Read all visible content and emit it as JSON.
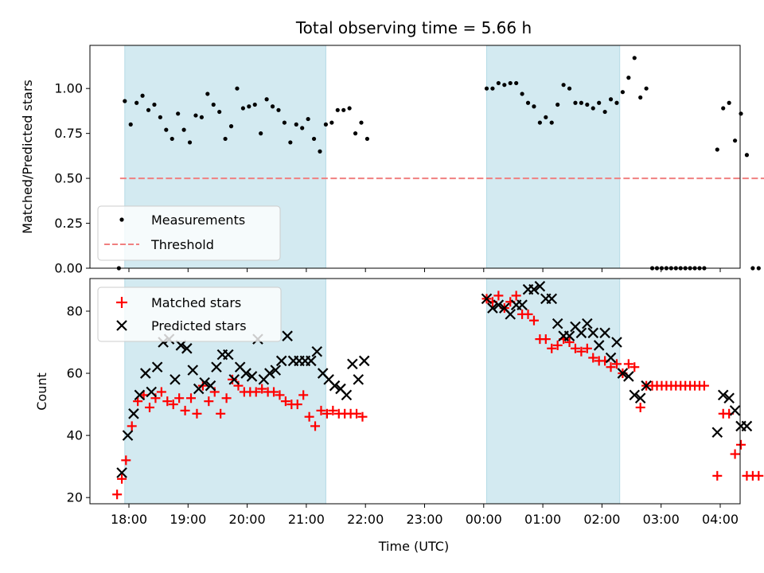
{
  "chart_data": [
    {
      "type": "scatter",
      "title": "Total observing time = 5.66 h",
      "ylabel": "Matched/Predicted stars",
      "ylim": [
        0,
        1.24
      ],
      "y_ticks": [
        0.0,
        0.25,
        0.5,
        0.75,
        1.0
      ],
      "y_tick_labels": [
        "0.00",
        "0.25",
        "0.50",
        "0.75",
        "1.00"
      ],
      "legend": {
        "placement": "lower-left",
        "entries": [
          "Measurements",
          "Threshold"
        ]
      },
      "series": [
        {
          "name": "Measurements",
          "marker": "dot",
          "color": "#000000",
          "points": [
            [
              17.83,
              0.0
            ],
            [
              17.93,
              0.93
            ],
            [
              18.03,
              0.8
            ],
            [
              18.13,
              0.92
            ],
            [
              18.23,
              0.96
            ],
            [
              18.33,
              0.88
            ],
            [
              18.43,
              0.91
            ],
            [
              18.53,
              0.84
            ],
            [
              18.63,
              0.77
            ],
            [
              18.73,
              0.72
            ],
            [
              18.83,
              0.86
            ],
            [
              18.93,
              0.77
            ],
            [
              19.03,
              0.7
            ],
            [
              19.13,
              0.85
            ],
            [
              19.23,
              0.84
            ],
            [
              19.33,
              0.97
            ],
            [
              19.43,
              0.91
            ],
            [
              19.53,
              0.87
            ],
            [
              19.63,
              0.72
            ],
            [
              19.73,
              0.79
            ],
            [
              19.83,
              1.0
            ],
            [
              19.93,
              0.89
            ],
            [
              20.03,
              0.9
            ],
            [
              20.13,
              0.91
            ],
            [
              20.23,
              0.75
            ],
            [
              20.33,
              0.94
            ],
            [
              20.43,
              0.9
            ],
            [
              20.53,
              0.88
            ],
            [
              20.63,
              0.81
            ],
            [
              20.73,
              0.7
            ],
            [
              20.83,
              0.8
            ],
            [
              20.93,
              0.78
            ],
            [
              21.03,
              0.83
            ],
            [
              21.13,
              0.72
            ],
            [
              21.23,
              0.65
            ],
            [
              21.33,
              0.8
            ],
            [
              21.43,
              0.81
            ],
            [
              21.53,
              0.88
            ],
            [
              21.63,
              0.88
            ],
            [
              21.73,
              0.89
            ],
            [
              21.83,
              0.75
            ],
            [
              21.93,
              0.81
            ],
            [
              22.03,
              0.72
            ],
            [
              24.05,
              1.0
            ],
            [
              24.15,
              1.0
            ],
            [
              24.25,
              1.03
            ],
            [
              24.35,
              1.02
            ],
            [
              24.45,
              1.03
            ],
            [
              24.55,
              1.03
            ],
            [
              24.65,
              0.97
            ],
            [
              24.75,
              0.92
            ],
            [
              24.85,
              0.9
            ],
            [
              24.95,
              0.81
            ],
            [
              25.05,
              0.84
            ],
            [
              25.15,
              0.81
            ],
            [
              25.25,
              0.91
            ],
            [
              25.35,
              1.02
            ],
            [
              25.45,
              1.0
            ],
            [
              25.55,
              0.92
            ],
            [
              25.65,
              0.92
            ],
            [
              25.75,
              0.91
            ],
            [
              25.85,
              0.89
            ],
            [
              25.95,
              0.92
            ],
            [
              26.05,
              0.87
            ],
            [
              26.15,
              0.94
            ],
            [
              26.25,
              0.92
            ],
            [
              26.35,
              0.98
            ],
            [
              26.45,
              1.06
            ],
            [
              26.55,
              1.17
            ],
            [
              26.65,
              0.95
            ],
            [
              26.75,
              1.0
            ],
            [
              26.85,
              0.0
            ],
            [
              26.93,
              0.0
            ],
            [
              27.01,
              0.0
            ],
            [
              27.09,
              0.0
            ],
            [
              27.17,
              0.0
            ],
            [
              27.25,
              0.0
            ],
            [
              27.33,
              0.0
            ],
            [
              27.41,
              0.0
            ],
            [
              27.49,
              0.0
            ],
            [
              27.57,
              0.0
            ],
            [
              27.65,
              0.0
            ],
            [
              27.73,
              0.0
            ],
            [
              27.95,
              0.66
            ],
            [
              28.05,
              0.89
            ],
            [
              28.15,
              0.92
            ],
            [
              28.25,
              0.71
            ],
            [
              28.35,
              0.86
            ],
            [
              28.45,
              0.63
            ],
            [
              28.55,
              0.0
            ],
            [
              28.65,
              0.0
            ]
          ]
        },
        {
          "name": "Threshold",
          "style": "dashed-line",
          "color": "#f08080",
          "points": [
            [
              17.85,
              0.5
            ],
            [
              28.75,
              0.5
            ]
          ]
        }
      ],
      "shaded_regions": [
        [
          17.93,
          21.33
        ],
        [
          24.05,
          26.3
        ]
      ],
      "shade_color": "#d3eaf1"
    },
    {
      "type": "scatter",
      "xlabel": "Time (UTC)",
      "ylabel": "Count",
      "ylim": [
        18,
        90.5
      ],
      "y_ticks": [
        20,
        40,
        60,
        80
      ],
      "y_tick_labels": [
        "20",
        "40",
        "60",
        "80"
      ],
      "x_ticks": [
        18,
        19,
        20,
        21,
        22,
        23,
        24,
        25,
        26,
        27,
        28
      ],
      "x_tick_labels": [
        "18:00",
        "19:00",
        "20:00",
        "21:00",
        "22:00",
        "23:00",
        "00:00",
        "01:00",
        "02:00",
        "03:00",
        "04:00"
      ],
      "legend": {
        "placement": "top-left",
        "entries": [
          "Matched stars",
          "Predicted stars"
        ]
      },
      "series": [
        {
          "name": "Matched stars",
          "marker": "plus",
          "color": "#ff0000",
          "points": [
            [
              17.8,
              21
            ],
            [
              17.88,
              26
            ],
            [
              17.95,
              32
            ],
            [
              18.05,
              43
            ],
            [
              18.15,
              51
            ],
            [
              18.25,
              53
            ],
            [
              18.35,
              49
            ],
            [
              18.45,
              52
            ],
            [
              18.55,
              54
            ],
            [
              18.65,
              51
            ],
            [
              18.75,
              50
            ],
            [
              18.85,
              52
            ],
            [
              18.95,
              48
            ],
            [
              19.05,
              52
            ],
            [
              19.15,
              47
            ],
            [
              19.25,
              56
            ],
            [
              19.35,
              51
            ],
            [
              19.45,
              54
            ],
            [
              19.55,
              47
            ],
            [
              19.65,
              52
            ],
            [
              19.75,
              58
            ],
            [
              19.85,
              56
            ],
            [
              19.95,
              54
            ],
            [
              20.05,
              54
            ],
            [
              20.15,
              54
            ],
            [
              20.25,
              55
            ],
            [
              20.35,
              54
            ],
            [
              20.45,
              54
            ],
            [
              20.55,
              53
            ],
            [
              20.65,
              51
            ],
            [
              20.75,
              50
            ],
            [
              20.85,
              50
            ],
            [
              20.95,
              53
            ],
            [
              21.05,
              46
            ],
            [
              21.15,
              43
            ],
            [
              21.25,
              48
            ],
            [
              21.35,
              47
            ],
            [
              21.45,
              48
            ],
            [
              21.55,
              47
            ],
            [
              21.65,
              47
            ],
            [
              21.75,
              47
            ],
            [
              21.85,
              47
            ],
            [
              21.95,
              46
            ],
            [
              24.05,
              84
            ],
            [
              24.15,
              83
            ],
            [
              24.25,
              85
            ],
            [
              24.35,
              81
            ],
            [
              24.45,
              83
            ],
            [
              24.55,
              85
            ],
            [
              24.65,
              79
            ],
            [
              24.75,
              79
            ],
            [
              24.85,
              77
            ],
            [
              24.95,
              71
            ],
            [
              25.05,
              71
            ],
            [
              25.15,
              68
            ],
            [
              25.25,
              69
            ],
            [
              25.35,
              71
            ],
            [
              25.45,
              70
            ],
            [
              25.55,
              68
            ],
            [
              25.65,
              67
            ],
            [
              25.75,
              68
            ],
            [
              25.85,
              65
            ],
            [
              25.95,
              64
            ],
            [
              26.05,
              64
            ],
            [
              26.15,
              62
            ],
            [
              26.25,
              63
            ],
            [
              26.35,
              60
            ],
            [
              26.45,
              63
            ],
            [
              26.55,
              62
            ],
            [
              26.65,
              49
            ],
            [
              26.75,
              56
            ],
            [
              26.85,
              56
            ],
            [
              26.93,
              56
            ],
            [
              27.01,
              56
            ],
            [
              27.09,
              56
            ],
            [
              27.17,
              56
            ],
            [
              27.25,
              56
            ],
            [
              27.33,
              56
            ],
            [
              27.41,
              56
            ],
            [
              27.49,
              56
            ],
            [
              27.57,
              56
            ],
            [
              27.65,
              56
            ],
            [
              27.73,
              56
            ],
            [
              27.95,
              27
            ],
            [
              28.05,
              47
            ],
            [
              28.15,
              47
            ],
            [
              28.25,
              34
            ],
            [
              28.35,
              37
            ],
            [
              28.45,
              27
            ],
            [
              28.55,
              27
            ],
            [
              28.65,
              27
            ]
          ]
        },
        {
          "name": "Predicted stars",
          "marker": "x",
          "color": "#000000",
          "points": [
            [
              17.88,
              28
            ],
            [
              17.98,
              40
            ],
            [
              18.08,
              47
            ],
            [
              18.18,
              53
            ],
            [
              18.28,
              60
            ],
            [
              18.38,
              54
            ],
            [
              18.48,
              62
            ],
            [
              18.58,
              70
            ],
            [
              18.68,
              71
            ],
            [
              18.78,
              58
            ],
            [
              18.88,
              69
            ],
            [
              18.98,
              68
            ],
            [
              19.08,
              61
            ],
            [
              19.18,
              55
            ],
            [
              19.28,
              57
            ],
            [
              19.38,
              56
            ],
            [
              19.48,
              62
            ],
            [
              19.58,
              66
            ],
            [
              19.68,
              66
            ],
            [
              19.78,
              58
            ],
            [
              19.88,
              62
            ],
            [
              19.98,
              60
            ],
            [
              20.08,
              59
            ],
            [
              20.18,
              71
            ],
            [
              20.28,
              58
            ],
            [
              20.38,
              60
            ],
            [
              20.48,
              61
            ],
            [
              20.58,
              64
            ],
            [
              20.68,
              72
            ],
            [
              20.78,
              64
            ],
            [
              20.88,
              64
            ],
            [
              20.98,
              64
            ],
            [
              21.08,
              64
            ],
            [
              21.18,
              67
            ],
            [
              21.28,
              60
            ],
            [
              21.38,
              58
            ],
            [
              21.48,
              56
            ],
            [
              21.58,
              55
            ],
            [
              21.68,
              53
            ],
            [
              21.78,
              63
            ],
            [
              21.88,
              58
            ],
            [
              21.98,
              64
            ],
            [
              24.05,
              84
            ],
            [
              24.15,
              81
            ],
            [
              24.25,
              82
            ],
            [
              24.35,
              81
            ],
            [
              24.45,
              79
            ],
            [
              24.55,
              82
            ],
            [
              24.65,
              82
            ],
            [
              24.75,
              87
            ],
            [
              24.85,
              87
            ],
            [
              24.95,
              88
            ],
            [
              25.05,
              84
            ],
            [
              25.15,
              84
            ],
            [
              25.25,
              76
            ],
            [
              25.35,
              72
            ],
            [
              25.45,
              72
            ],
            [
              25.55,
              75
            ],
            [
              25.65,
              73
            ],
            [
              25.75,
              76
            ],
            [
              25.85,
              73
            ],
            [
              25.95,
              69
            ],
            [
              26.05,
              73
            ],
            [
              26.15,
              65
            ],
            [
              26.25,
              70
            ],
            [
              26.35,
              60
            ],
            [
              26.45,
              59
            ],
            [
              26.55,
              53
            ],
            [
              26.65,
              52
            ],
            [
              26.75,
              56
            ],
            [
              27.95,
              41
            ],
            [
              28.05,
              53
            ],
            [
              28.15,
              52
            ],
            [
              28.25,
              48
            ],
            [
              28.35,
              43
            ],
            [
              28.45,
              43
            ]
          ]
        }
      ],
      "shaded_regions": [
        [
          17.93,
          21.33
        ],
        [
          24.05,
          26.3
        ]
      ],
      "shade_color": "#d3eaf1"
    }
  ]
}
